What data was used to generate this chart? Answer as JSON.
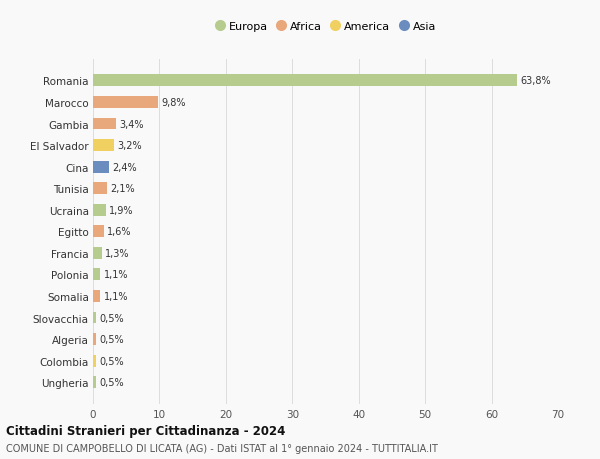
{
  "countries": [
    "Romania",
    "Marocco",
    "Gambia",
    "El Salvador",
    "Cina",
    "Tunisia",
    "Ucraina",
    "Egitto",
    "Francia",
    "Polonia",
    "Somalia",
    "Slovacchia",
    "Algeria",
    "Colombia",
    "Ungheria"
  ],
  "values": [
    63.8,
    9.8,
    3.4,
    3.2,
    2.4,
    2.1,
    1.9,
    1.6,
    1.3,
    1.1,
    1.1,
    0.5,
    0.5,
    0.5,
    0.5
  ],
  "labels": [
    "63,8%",
    "9,8%",
    "3,4%",
    "3,2%",
    "2,4%",
    "2,1%",
    "1,9%",
    "1,6%",
    "1,3%",
    "1,1%",
    "1,1%",
    "0,5%",
    "0,5%",
    "0,5%",
    "0,5%"
  ],
  "continents": [
    "Europa",
    "Africa",
    "Africa",
    "America",
    "Asia",
    "Africa",
    "Europa",
    "Africa",
    "Europa",
    "Europa",
    "Africa",
    "Europa",
    "Africa",
    "America",
    "Europa"
  ],
  "colors": {
    "Europa": "#b5cc8e",
    "Africa": "#e8a87c",
    "America": "#f0d060",
    "Asia": "#6b8cbf"
  },
  "legend_order": [
    "Europa",
    "Africa",
    "America",
    "Asia"
  ],
  "title": "Cittadini Stranieri per Cittadinanza - 2024",
  "subtitle": "COMUNE DI CAMPOBELLO DI LICATA (AG) - Dati ISTAT al 1° gennaio 2024 - TUTTITALIA.IT",
  "xlim": [
    0,
    70
  ],
  "xticks": [
    0,
    10,
    20,
    30,
    40,
    50,
    60,
    70
  ],
  "background_color": "#f9f9f9",
  "grid_color": "#dddddd"
}
